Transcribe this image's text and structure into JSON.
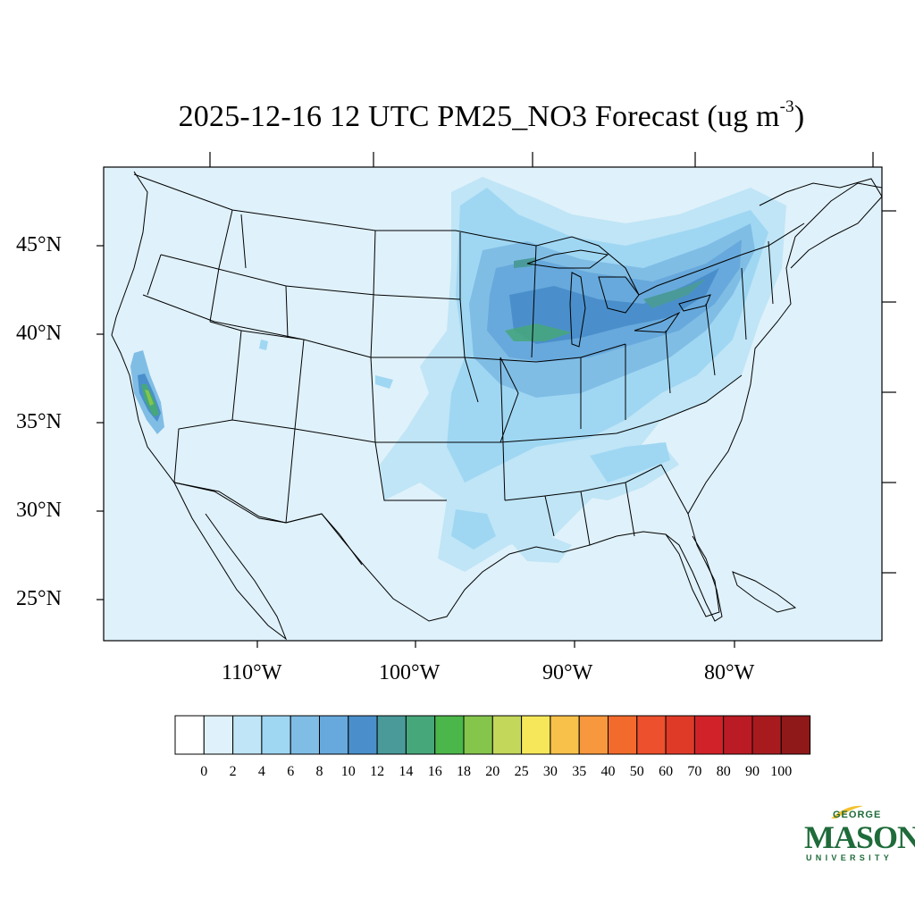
{
  "title": {
    "main": "2025-12-16 12 UTC PM25_NO3 Forecast (ug m",
    "superscript": "-3",
    "close": ")"
  },
  "map": {
    "region": "Continental United States",
    "ocean_color": "#dff1fa",
    "projection": "Lambert conformal"
  },
  "latitude_labels": [
    "45°N",
    "40°N",
    "35°N",
    "30°N",
    "25°N"
  ],
  "longitude_labels": [
    "110°W",
    "100°W",
    "90°W",
    "80°W"
  ],
  "colorbar": {
    "labels": [
      "0",
      "2",
      "4",
      "6",
      "8",
      "10",
      "12",
      "14",
      "16",
      "18",
      "20",
      "25",
      "30",
      "35",
      "40",
      "50",
      "60",
      "70",
      "80",
      "90",
      "100"
    ],
    "colors": [
      "#ffffff",
      "#dff1fa",
      "#bfe5f6",
      "#9fd7f3",
      "#80bde5",
      "#67a9dc",
      "#4a8fcb",
      "#4a9a9a",
      "#46a77a",
      "#4bb74a",
      "#85c54c",
      "#c3d75a",
      "#f6e75a",
      "#f7c14a",
      "#f7983e",
      "#f36b2c",
      "#ec502c",
      "#df3a28",
      "#d02228",
      "#bb1b24",
      "#a71b1f",
      "#8f1819"
    ]
  },
  "logo": {
    "line1": "GEORGE",
    "line2": "MASON",
    "line3": "UNIVERSITY"
  }
}
